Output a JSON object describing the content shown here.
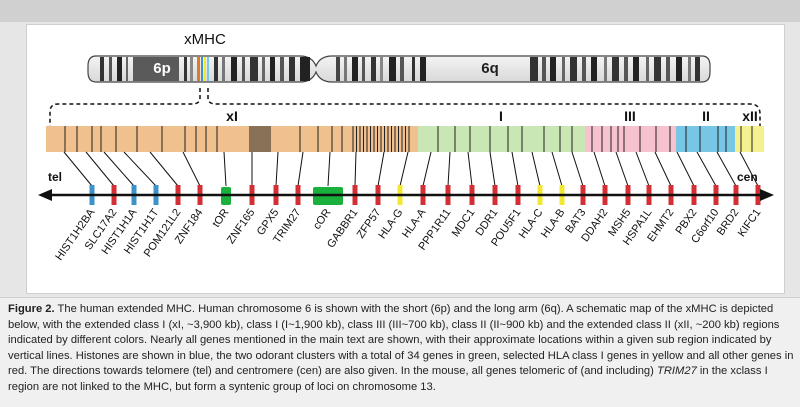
{
  "figure": {
    "title": "xMHC",
    "arm_short": "6p",
    "arm_long": "6q",
    "tel_label": "tel",
    "cen_label": "cen",
    "colors": {
      "class_xI": "#f0c08e",
      "class_I": "#c9e7b5",
      "class_III": "#f6c2cf",
      "class_II": "#77c6e6",
      "class_xII": "#f4f090",
      "histone": "#3d93c8",
      "odorant": "#19b13c",
      "hla_class_I": "#f0e832",
      "other": "#d32f35"
    },
    "regions": [
      {
        "label": "xI",
        "name": "class_xI"
      },
      {
        "label": "I",
        "name": "class_I"
      },
      {
        "label": "III",
        "name": "class_III"
      },
      {
        "label": "II",
        "name": "class_II"
      },
      {
        "label": "xII",
        "name": "class_xII"
      }
    ],
    "genes": [
      {
        "name": "HIST1H2BA",
        "type": "histone"
      },
      {
        "name": "SLC17A2",
        "type": "other"
      },
      {
        "name": "HIST1H1A",
        "type": "histone"
      },
      {
        "name": "HIST1H1T",
        "type": "histone"
      },
      {
        "name": "POM121L2",
        "type": "other"
      },
      {
        "name": "ZNF184",
        "type": "other"
      },
      {
        "name": "tOR",
        "type": "odorant"
      },
      {
        "name": "ZNF165",
        "type": "other"
      },
      {
        "name": "GPX5",
        "type": "other"
      },
      {
        "name": "TRIM27",
        "type": "other"
      },
      {
        "name": "cOR",
        "type": "odorant"
      },
      {
        "name": "GABBR1",
        "type": "other"
      },
      {
        "name": "ZFP57",
        "type": "other"
      },
      {
        "name": "HLA-G",
        "type": "hla_class_I"
      },
      {
        "name": "HLA-A",
        "type": "other"
      },
      {
        "name": "PPP1R11",
        "type": "other"
      },
      {
        "name": "MDC1",
        "type": "other"
      },
      {
        "name": "DDR1",
        "type": "other"
      },
      {
        "name": "POU5F1",
        "type": "other"
      },
      {
        "name": "HLA-C",
        "type": "hla_class_I"
      },
      {
        "name": "HLA-B",
        "type": "hla_class_I"
      },
      {
        "name": "BAT3",
        "type": "other"
      },
      {
        "name": "DDAH2",
        "type": "other"
      },
      {
        "name": "MSH5",
        "type": "other"
      },
      {
        "name": "HSPA1L",
        "type": "other"
      },
      {
        "name": "EHMT2",
        "type": "other"
      },
      {
        "name": "PBX2",
        "type": "other"
      },
      {
        "name": "C6orf10",
        "type": "other"
      },
      {
        "name": "BRD2",
        "type": "other"
      },
      {
        "name": "KIFC1",
        "type": "other"
      }
    ]
  },
  "caption": {
    "label": "Figure 2.",
    "text_before_italic": " The human extended MHC. Human chromosome 6 is shown with the short (6p) and the long arm (6q). A schematic map of the xMHC is depicted below, with the extended class I (xI, ~3,900 kb), class I (I~1,900 kb), class III (III~700 kb), class II (II~900 kb) and the extended class II (xII, ~200 kb) regions indicated by different colors. Nearly all genes mentioned in the main text are shown, with their approximate locations within a given sub region indicated by vertical lines. Histones are shown in blue, the two odorant clusters with a total of 34 genes in green, selected HLA class I genes in yellow and all other genes in red. The directions towards telomere (tel) and centromere (cen) are also given. In the mouse, all genes telomeric of (and including) ",
    "italic_gene": "TRIM27",
    "text_after_italic": " in the xclass I region are not linked to the MHC, but form a syntenic group of loci on chromosome 13."
  }
}
